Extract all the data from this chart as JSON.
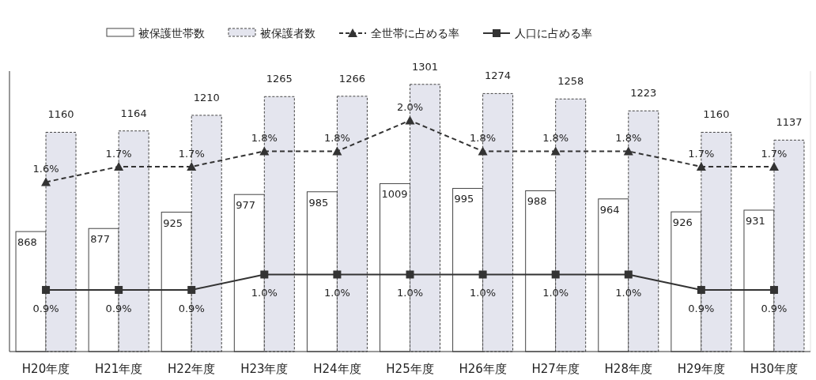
{
  "chart_data": {
    "type": "bar",
    "categories": [
      "H20年度",
      "H21年度",
      "H22年度",
      "H23年度",
      "H24年度",
      "H25年度",
      "H26年度",
      "H27年度",
      "H28年度",
      "H29年度",
      "H30年度"
    ],
    "ylim": [
      515,
      1340
    ],
    "y2lim": [
      0.5,
      2.32
    ],
    "legend": "top",
    "grid": false,
    "data_labels": true,
    "series": [
      {
        "name": "被保護世帯数",
        "color": "#ffffff",
        "values": [
          868,
          877,
          925,
          977,
          985,
          1009,
          995,
          988,
          964,
          926,
          931
        ]
      },
      {
        "name": "被保護者数",
        "color": "#e4e5ee",
        "values": [
          1160,
          1164,
          1210,
          1265,
          1266,
          1301,
          1274,
          1258,
          1223,
          1160,
          1137
        ]
      },
      {
        "name": "全世帯に占める率",
        "type": "line",
        "axis": "y2",
        "color": "#333333",
        "marker": "triangle",
        "line_style": "dashed",
        "values": [
          1.6,
          1.7,
          1.7,
          1.8,
          1.8,
          2.0,
          1.8,
          1.8,
          1.8,
          1.7,
          1.7
        ],
        "value_labels": [
          "1.6%",
          "1.7%",
          "1.7%",
          "1.8%",
          "1.8%",
          "2.0%",
          "1.8%",
          "1.8%",
          "1.8%",
          "1.7%",
          "1.7%"
        ]
      },
      {
        "name": "人口に占める率",
        "type": "line",
        "axis": "y2",
        "color": "#333333",
        "marker": "square",
        "line_style": "solid",
        "values": [
          0.9,
          0.9,
          0.9,
          1.0,
          1.0,
          1.0,
          1.0,
          1.0,
          1.0,
          0.9,
          0.9
        ],
        "value_labels": [
          "0.9%",
          "0.9%",
          "0.9%",
          "1.0%",
          "1.0%",
          "1.0%",
          "1.0%",
          "1.0%",
          "1.0%",
          "0.9%",
          "0.9%"
        ]
      }
    ]
  }
}
